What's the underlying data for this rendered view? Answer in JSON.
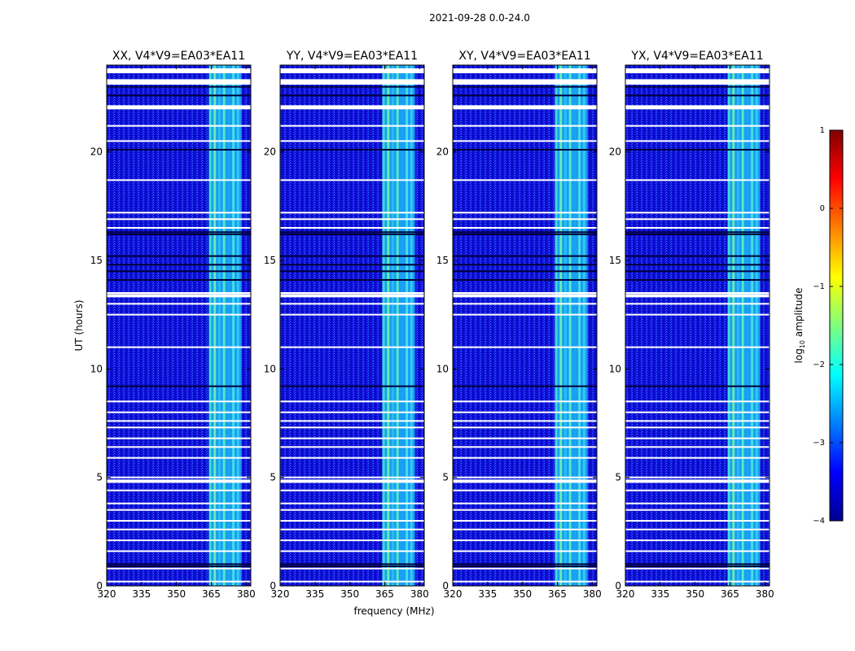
{
  "figure": {
    "suptitle": "2021-09-28 0.0-24.0"
  },
  "chart_data": [
    {
      "type": "heatmap",
      "title": "XX, V4*V9=EA03*EA11",
      "xlabel": "",
      "ylabel": "UT (hours)",
      "xlim": [
        320,
        382
      ],
      "ylim": [
        0,
        24
      ],
      "xticks": [
        320,
        335,
        350,
        365,
        380
      ],
      "yticks": [
        0,
        5,
        10,
        15,
        20
      ],
      "z_units": "log10 amplitude",
      "rfi_band_mhz": [
        364,
        378
      ]
    },
    {
      "type": "heatmap",
      "title": "YY, V4*V9=EA03*EA11",
      "xlabel": "frequency (MHz)",
      "ylabel": "",
      "xlim": [
        320,
        382
      ],
      "ylim": [
        0,
        24
      ],
      "xticks": [
        320,
        335,
        350,
        365,
        380
      ],
      "yticks": [
        0,
        5,
        10,
        15,
        20
      ],
      "z_units": "log10 amplitude",
      "rfi_band_mhz": [
        364,
        378
      ]
    },
    {
      "type": "heatmap",
      "title": "XY, V4*V9=EA03*EA11",
      "xlabel": "",
      "ylabel": "",
      "xlim": [
        320,
        382
      ],
      "ylim": [
        0,
        24
      ],
      "xticks": [
        320,
        335,
        350,
        365,
        380
      ],
      "yticks": [
        0,
        5,
        10,
        15,
        20
      ],
      "z_units": "log10 amplitude",
      "rfi_band_mhz": [
        364,
        378
      ]
    },
    {
      "type": "heatmap",
      "title": "YX, V4*V9=EA03*EA11",
      "xlabel": "",
      "ylabel": "",
      "xlim": [
        320,
        382
      ],
      "ylim": [
        0,
        24
      ],
      "xticks": [
        320,
        335,
        350,
        365,
        380
      ],
      "yticks": [
        0,
        5,
        10,
        15,
        20
      ],
      "z_units": "log10 amplitude",
      "rfi_band_mhz": [
        364,
        378
      ]
    }
  ],
  "flagged_rows_ut": [
    0.2,
    0.8,
    1.6,
    2.1,
    2.6,
    3.0,
    3.5,
    3.8,
    4.4,
    4.8,
    5.0,
    5.9,
    6.4,
    6.8,
    7.3,
    7.6,
    8.0,
    8.5,
    11.0,
    12.5,
    13.0,
    13.5,
    16.5,
    16.9,
    17.2,
    18.7,
    20.5,
    21.2,
    22.0,
    23.7
  ],
  "dark_rows_ut": [
    0.9,
    1.0,
    9.2,
    14.1,
    14.5,
    14.8,
    15.2,
    16.2,
    16.3,
    20.1,
    22.6,
    23.0,
    23.2
  ],
  "colorbar": {
    "label_prefix": "log",
    "label_sub": "10",
    "label_suffix": " amplitude",
    "range": [
      -4,
      1
    ],
    "ticks": [
      "1",
      "0",
      "−1",
      "−2",
      "−3",
      "−4"
    ],
    "tick_values": [
      1,
      0,
      -1,
      -2,
      -3,
      -4
    ],
    "colors": [
      "#00008f",
      "#0000ff",
      "#0080ff",
      "#00ffff",
      "#80ff80",
      "#ffff00",
      "#ff8000",
      "#ff0000",
      "#800000"
    ]
  }
}
